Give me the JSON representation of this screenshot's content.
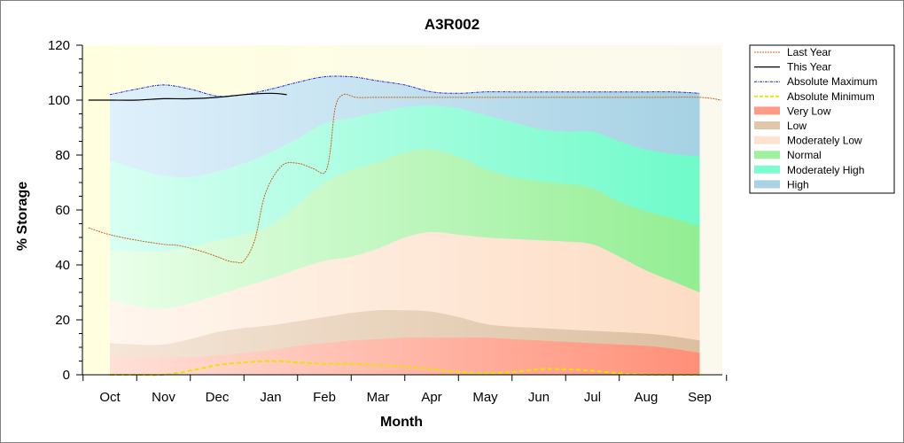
{
  "chart_data": {
    "type": "area",
    "title": "A3R002",
    "xlabel": "Month",
    "ylabel": "% Storage",
    "ylim": [
      0,
      120
    ],
    "yticks": [
      "0",
      "20",
      "40",
      "60",
      "80",
      "100",
      "120"
    ],
    "months": [
      "Oct",
      "Nov",
      "Dec",
      "Jan",
      "Feb",
      "Mar",
      "Apr",
      "May",
      "Jun",
      "Jul",
      "Aug",
      "Sep"
    ],
    "legend_position": "right",
    "grid": false,
    "colors": {
      "plot_bg": "#fdfde8",
      "very_low": "#ff9a85",
      "low": "#e2c6a9",
      "moderately_low": "#fde3cf",
      "normal": "#9ef29e",
      "moderately_high": "#7dfccd",
      "high": "#a9d2e6",
      "last_year": "#c8641e",
      "this_year": "#000000",
      "abs_max": "#1c2bc8",
      "abs_min": "#e6e600"
    },
    "bands": {
      "x": [
        0,
        0.5,
        1,
        1.5,
        2,
        2.5,
        3,
        3.5,
        4,
        4.5,
        5,
        5.5,
        6,
        6.5,
        7,
        7.5,
        8,
        8.5,
        9,
        9.5,
        10,
        10.5,
        11
      ],
      "very_low_top": [
        6.5,
        6.5,
        6.5,
        6.5,
        7,
        8,
        9,
        10.5,
        11.5,
        12.5,
        13,
        13.5,
        13.5,
        13.5,
        13.5,
        13,
        12.5,
        12,
        11.5,
        11,
        10.5,
        9.5,
        8
      ],
      "low_top": [
        11.5,
        11,
        11,
        13,
        15.5,
        17,
        18,
        19.5,
        21,
        22.5,
        23.5,
        23.5,
        23,
        21,
        18.5,
        17.5,
        17,
        16.5,
        16,
        15.5,
        15,
        14,
        12.5
      ],
      "moderately_low_top": [
        27,
        25,
        24,
        26,
        29,
        32,
        35,
        38.5,
        41.5,
        43,
        46,
        50,
        52,
        51,
        50,
        49.5,
        49,
        48.5,
        47.5,
        43,
        38,
        34,
        30
      ],
      "normal_top": [
        45.5,
        45,
        45,
        46.5,
        49,
        51,
        54.5,
        62,
        70,
        74.5,
        77.5,
        81,
        82,
        79.5,
        75,
        72,
        70.5,
        69.5,
        68,
        63,
        59.5,
        57,
        54
      ],
      "moderately_high_top": [
        78,
        75,
        72.5,
        72,
        74,
        77,
        81,
        86,
        91.5,
        93.5,
        95.5,
        97.5,
        98,
        97,
        94.5,
        92,
        89.5,
        88.5,
        88.5,
        85,
        82,
        80.5,
        79.5
      ],
      "high_top": [
        102,
        104,
        105.5,
        104,
        101.5,
        102,
        104,
        106.5,
        108.5,
        108.5,
        107,
        105.5,
        103,
        102.5,
        103,
        103,
        103,
        103,
        103,
        103,
        103,
        103,
        102.5
      ]
    },
    "series": [
      {
        "name": "Last Year",
        "x": [
          -0.4,
          0,
          0.5,
          1,
          1.3,
          1.7,
          2,
          2.2,
          2.35,
          2.5,
          2.7,
          2.9,
          3.2,
          3.5,
          3.8,
          4,
          4.1,
          4.2,
          4.35,
          4.6,
          5,
          6,
          7,
          8,
          9,
          10,
          11,
          11.4
        ],
        "y": [
          53.5,
          51,
          49,
          47.5,
          47,
          45,
          43,
          41.5,
          41,
          41.5,
          49,
          66,
          76,
          77,
          75,
          73.5,
          80,
          97,
          102,
          101,
          101,
          101,
          101,
          101,
          101,
          101,
          101,
          100
        ]
      },
      {
        "name": "This Year",
        "x": [
          -0.4,
          0,
          0.5,
          1,
          1.5,
          2,
          2.5,
          3,
          3.3
        ],
        "y": [
          100,
          100,
          100,
          100.5,
          100.5,
          101,
          102,
          102.5,
          102
        ]
      },
      {
        "name": "Absolute Maximum",
        "x": [
          0,
          0.5,
          1,
          1.5,
          2,
          2.5,
          3,
          3.5,
          4,
          4.5,
          5,
          5.5,
          6,
          6.5,
          7,
          7.5,
          8,
          8.5,
          9,
          9.5,
          10,
          10.5,
          11
        ],
        "y": [
          102,
          104,
          105.5,
          104,
          101.5,
          102,
          104,
          106.5,
          108.5,
          108.5,
          107,
          105.5,
          103,
          102.5,
          103,
          103,
          103,
          103,
          103,
          103,
          103,
          103,
          102.5
        ]
      },
      {
        "name": "Absolute Minimum",
        "x": [
          0,
          0.5,
          1,
          1.5,
          2,
          2.5,
          3,
          3.5,
          4,
          4.5,
          5,
          5.5,
          6,
          6.5,
          7,
          7.5,
          8,
          8.5,
          9,
          9.5,
          10,
          10.5,
          11
        ],
        "y": [
          0,
          0,
          0,
          1.5,
          3.5,
          4.5,
          5,
          4.5,
          4,
          4,
          3.5,
          3,
          2,
          1,
          0.5,
          1,
          2,
          2,
          1.5,
          0.5,
          0,
          0,
          0
        ]
      },
      {
        "name": "Very Low"
      },
      {
        "name": "Low"
      },
      {
        "name": "Moderately Low"
      },
      {
        "name": "Normal"
      },
      {
        "name": "Moderately High"
      },
      {
        "name": "High"
      }
    ]
  }
}
